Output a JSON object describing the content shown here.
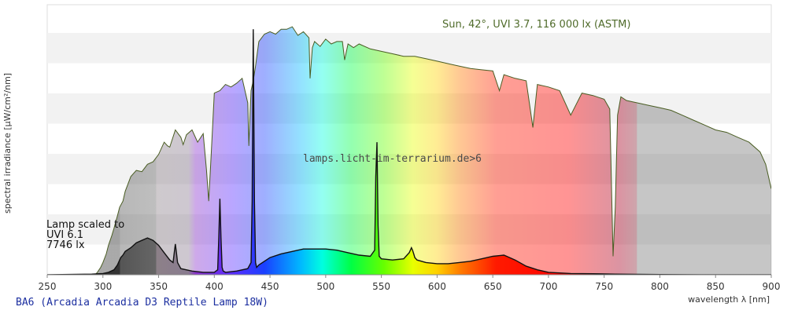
{
  "chart_data": {
    "type": "area",
    "xlabel": "wavelength λ [nm]",
    "ylabel": "spectral irradiance [µW/cm²/nm]",
    "xlim": [
      250,
      900
    ],
    "xticks": [
      250,
      300,
      350,
      400,
      450,
      500,
      550,
      600,
      650,
      700,
      750,
      800,
      850,
      900
    ],
    "grid": "horizontal bands",
    "footer": "BA6 (Arcadia Arcadia D3 Reptile Lamp 18W)",
    "watermark": "lamps.licht-im-terrarium.de>6",
    "sun_label": "Sun, 42°, UVI 3.7, 116 000 lx (ASTM)",
    "lamp_label": [
      "Lamp scaled to",
      "UVI 6.1",
      "7746 lx"
    ],
    "series": [
      {
        "name": "Sun, 42°, UVI 3.7, 116 000 lx (ASTM)",
        "color": "#4a5d23",
        "x": [
          293,
          295,
          298,
          300,
          303,
          305,
          308,
          310,
          313,
          315,
          318,
          320,
          325,
          330,
          335,
          340,
          345,
          350,
          355,
          358,
          360,
          365,
          370,
          372,
          375,
          380,
          385,
          390,
          393,
          395,
          397,
          400,
          405,
          410,
          415,
          420,
          425,
          430,
          431,
          433,
          435,
          437,
          440,
          445,
          450,
          455,
          460,
          465,
          470,
          475,
          480,
          485,
          486,
          488,
          490,
          495,
          500,
          505,
          510,
          515,
          517,
          520,
          525,
          530,
          540,
          550,
          560,
          570,
          580,
          590,
          600,
          610,
          620,
          630,
          640,
          650,
          656,
          660,
          670,
          680,
          686,
          690,
          700,
          710,
          720,
          730,
          740,
          750,
          755,
          758,
          760,
          762,
          765,
          770,
          780,
          790,
          800,
          810,
          820,
          830,
          840,
          850,
          860,
          870,
          880,
          890,
          895,
          900
        ],
        "values": [
          0,
          2,
          6,
          10,
          17,
          24,
          32,
          38,
          48,
          55,
          60,
          68,
          80,
          85,
          84,
          90,
          92,
          98,
          108,
          105,
          104,
          118,
          112,
          106,
          114,
          118,
          108,
          115,
          85,
          60,
          95,
          148,
          150,
          155,
          153,
          156,
          160,
          140,
          105,
          150,
          158,
          170,
          190,
          196,
          198,
          196,
          200,
          200,
          202,
          195,
          198,
          193,
          160,
          185,
          190,
          186,
          192,
          188,
          190,
          190,
          175,
          188,
          185,
          188,
          184,
          182,
          180,
          178,
          178,
          176,
          174,
          172,
          170,
          168,
          167,
          166,
          150,
          163,
          160,
          158,
          120,
          155,
          153,
          150,
          130,
          148,
          146,
          143,
          135,
          15,
          55,
          130,
          145,
          142,
          140,
          138,
          136,
          134,
          130,
          126,
          122,
          118,
          116,
          112,
          108,
          100,
          90,
          70
        ]
      },
      {
        "name": "Arcadia D3 Reptile Lamp 18W (scaled)",
        "color": "#111111",
        "x": [
          250,
          290,
          300,
          305,
          310,
          313,
          316,
          318,
          320,
          325,
          330,
          335,
          340,
          345,
          350,
          355,
          360,
          363,
          364,
          365,
          366,
          367,
          370,
          380,
          390,
          400,
          403,
          404,
          405,
          406,
          407,
          408,
          410,
          420,
          430,
          433,
          434,
          435,
          436,
          437,
          438,
          440,
          450,
          460,
          470,
          480,
          490,
          500,
          510,
          520,
          530,
          540,
          544,
          545,
          546,
          547,
          548,
          550,
          560,
          570,
          575,
          577,
          578,
          579,
          580,
          582,
          590,
          600,
          610,
          620,
          630,
          640,
          650,
          660,
          670,
          680,
          690,
          700,
          720,
          740,
          760,
          780,
          800,
          850,
          900
        ],
        "values": [
          0,
          0.5,
          1,
          2,
          4,
          8,
          14,
          16,
          19,
          22,
          26,
          28,
          30,
          28,
          24,
          18,
          12,
          10,
          18,
          25,
          18,
          10,
          5,
          3,
          2,
          2,
          4,
          30,
          62,
          30,
          6,
          3,
          2,
          3,
          5,
          10,
          60,
          200,
          60,
          10,
          6,
          8,
          14,
          17,
          19,
          21,
          21,
          21,
          20,
          18,
          16,
          15,
          20,
          80,
          108,
          40,
          15,
          13,
          12,
          13,
          18,
          22,
          20,
          17,
          14,
          12,
          10,
          9,
          9,
          10,
          11,
          13,
          15,
          16,
          12,
          7,
          4,
          2,
          1,
          0.8,
          0.5,
          0.3,
          0.2,
          0,
          0
        ]
      }
    ]
  }
}
